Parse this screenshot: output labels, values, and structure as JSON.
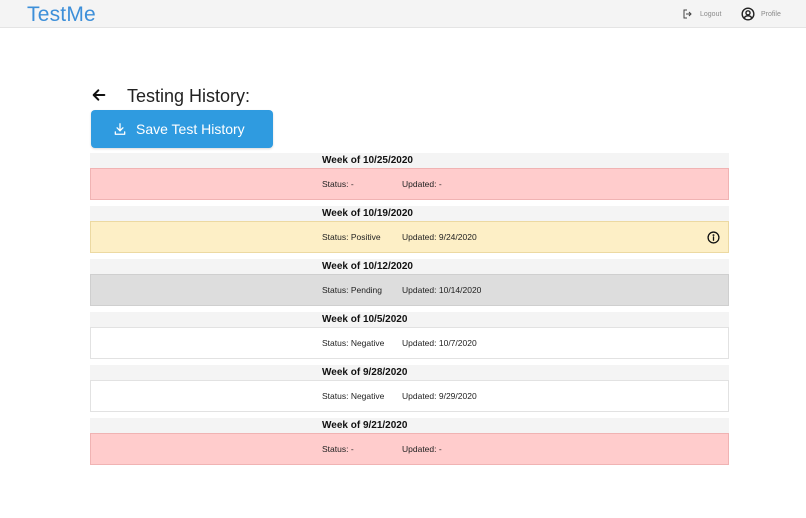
{
  "app": {
    "name": "TestMe"
  },
  "nav": {
    "logout_label": "Logout",
    "profile_label": "Profile"
  },
  "page": {
    "title": "Testing History:",
    "save_button_label": "Save Test History"
  },
  "history": [
    {
      "week": "Week of 10/25/2020",
      "status": "Status: -",
      "updated": "Updated: -",
      "state": "red",
      "info": false
    },
    {
      "week": "Week of 10/19/2020",
      "status": "Status: Positive",
      "updated": "Updated: 9/24/2020",
      "state": "yellow",
      "info": true
    },
    {
      "week": "Week of 10/12/2020",
      "status": "Status: Pending",
      "updated": "Updated: 10/14/2020",
      "state": "grey",
      "info": false
    },
    {
      "week": "Week of 10/5/2020",
      "status": "Status: Negative",
      "updated": "Updated: 10/7/2020",
      "state": "white",
      "info": false
    },
    {
      "week": "Week of 9/28/2020",
      "status": "Status: Negative",
      "updated": "Updated: 9/29/2020",
      "state": "white",
      "info": false
    },
    {
      "week": "Week of 9/21/2020",
      "status": "Status: -",
      "updated": "Updated: -",
      "state": "red",
      "info": false
    }
  ],
  "colors": {
    "brand": "#3d8fd9",
    "button": "#2f9be0",
    "red": "#ffcccc",
    "yellow": "#fdefc6",
    "grey": "#dddddd"
  },
  "icons": {
    "back": "arrow-left-icon",
    "save": "download-icon",
    "logout": "logout-icon",
    "profile": "user-circle-icon",
    "info": "info-circle-icon"
  }
}
